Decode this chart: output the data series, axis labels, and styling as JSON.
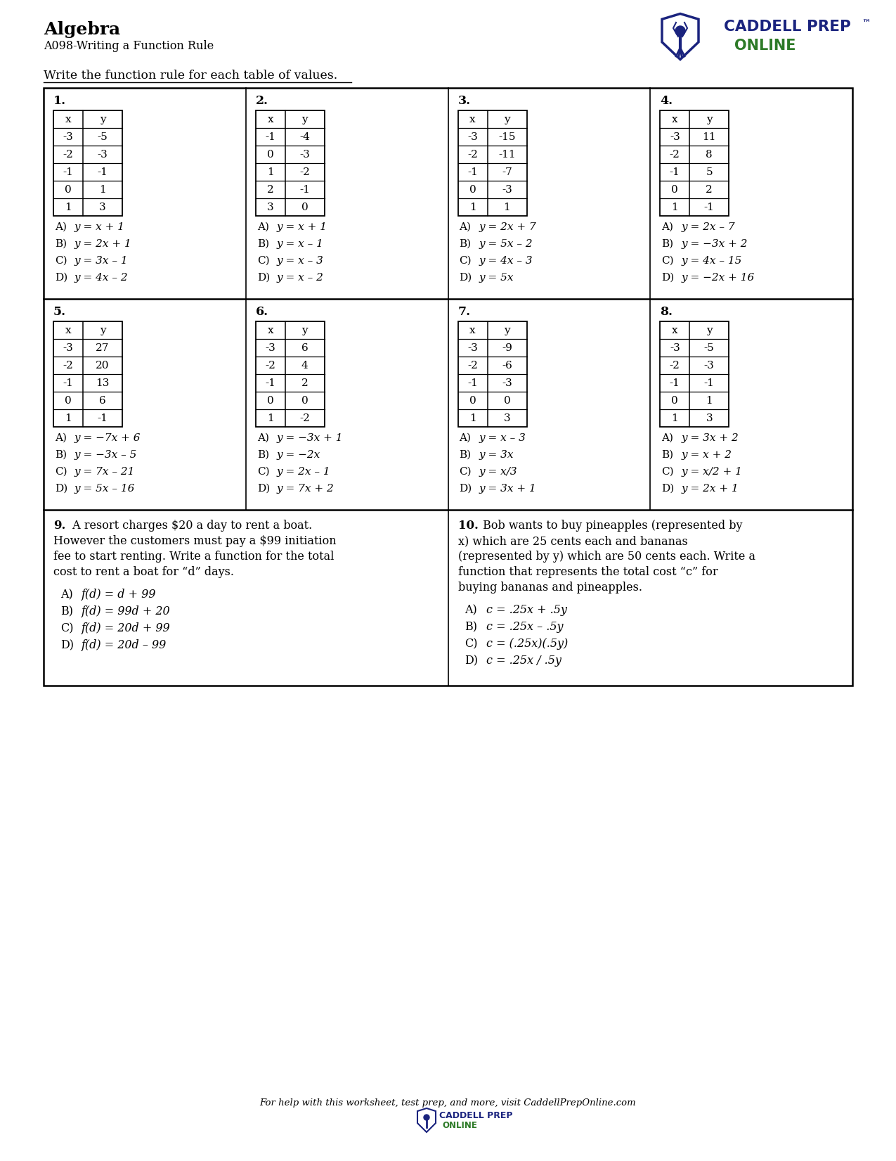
{
  "title": "Algebra",
  "subtitle": "A098-Writing a Function Rule",
  "instruction": "Write the function rule for each table of values.",
  "blue_color": "#1a237e",
  "green_color": "#2d7a27",
  "tables": [
    {
      "num": "1.",
      "data": [
        [
          "x",
          "y"
        ],
        [
          "-3",
          "-5"
        ],
        [
          "-2",
          "-3"
        ],
        [
          "-1",
          "-1"
        ],
        [
          "0",
          "1"
        ],
        [
          "1",
          "3"
        ]
      ],
      "choices": [
        [
          "A)",
          "y = x + 1"
        ],
        [
          "B)",
          "y = 2x + 1"
        ],
        [
          "C)",
          "y = 3x – 1"
        ],
        [
          "D)",
          "y = 4x – 2"
        ]
      ]
    },
    {
      "num": "2.",
      "data": [
        [
          "x",
          "y"
        ],
        [
          "-1",
          "-4"
        ],
        [
          "0",
          "-3"
        ],
        [
          "1",
          "-2"
        ],
        [
          "2",
          "-1"
        ],
        [
          "3",
          "0"
        ]
      ],
      "choices": [
        [
          "A)",
          "y = x + 1"
        ],
        [
          "B)",
          "y = x – 1"
        ],
        [
          "C)",
          "y = x – 3"
        ],
        [
          "D)",
          "y = x – 2"
        ]
      ]
    },
    {
      "num": "3.",
      "data": [
        [
          "x",
          "y"
        ],
        [
          "-3",
          "-15"
        ],
        [
          "-2",
          "-11"
        ],
        [
          "-1",
          "-7"
        ],
        [
          "0",
          "-3"
        ],
        [
          "1",
          "1"
        ]
      ],
      "choices": [
        [
          "A)",
          "y = 2x + 7"
        ],
        [
          "B)",
          "y = 5x – 2"
        ],
        [
          "C)",
          "y = 4x – 3"
        ],
        [
          "D)",
          "y = 5x"
        ]
      ]
    },
    {
      "num": "4.",
      "data": [
        [
          "x",
          "y"
        ],
        [
          "-3",
          "11"
        ],
        [
          "-2",
          "8"
        ],
        [
          "-1",
          "5"
        ],
        [
          "0",
          "2"
        ],
        [
          "1",
          "-1"
        ]
      ],
      "choices": [
        [
          "A)",
          "y = 2x – 7"
        ],
        [
          "B)",
          "y = −3x + 2"
        ],
        [
          "C)",
          "y = 4x – 15"
        ],
        [
          "D)",
          "y = −2x + 16"
        ]
      ]
    },
    {
      "num": "5.",
      "data": [
        [
          "x",
          "y"
        ],
        [
          "-3",
          "27"
        ],
        [
          "-2",
          "20"
        ],
        [
          "-1",
          "13"
        ],
        [
          "0",
          "6"
        ],
        [
          "1",
          "-1"
        ]
      ],
      "choices": [
        [
          "A)",
          "y = −7x + 6"
        ],
        [
          "B)",
          "y = −3x – 5"
        ],
        [
          "C)",
          "y = 7x – 21"
        ],
        [
          "D)",
          "y = 5x – 16"
        ]
      ]
    },
    {
      "num": "6.",
      "data": [
        [
          "x",
          "y"
        ],
        [
          "-3",
          "6"
        ],
        [
          "-2",
          "4"
        ],
        [
          "-1",
          "2"
        ],
        [
          "0",
          "0"
        ],
        [
          "1",
          "-2"
        ]
      ],
      "choices": [
        [
          "A)",
          "y = −3x + 1"
        ],
        [
          "B)",
          "y = −2x"
        ],
        [
          "C)",
          "y = 2x – 1"
        ],
        [
          "D)",
          "y = 7x + 2"
        ]
      ]
    },
    {
      "num": "7.",
      "data": [
        [
          "x",
          "y"
        ],
        [
          "-3",
          "-9"
        ],
        [
          "-2",
          "-6"
        ],
        [
          "-1",
          "-3"
        ],
        [
          "0",
          "0"
        ],
        [
          "1",
          "3"
        ]
      ],
      "choices": [
        [
          "A)",
          "y = x – 3"
        ],
        [
          "B)",
          "y = 3x"
        ],
        [
          "C)",
          "y = x/3"
        ],
        [
          "D)",
          "y = 3x + 1"
        ]
      ]
    },
    {
      "num": "8.",
      "data": [
        [
          "x",
          "y"
        ],
        [
          "-3",
          "-5"
        ],
        [
          "-2",
          "-3"
        ],
        [
          "-1",
          "-1"
        ],
        [
          "0",
          "1"
        ],
        [
          "1",
          "3"
        ]
      ],
      "choices": [
        [
          "A)",
          "y = 3x + 2"
        ],
        [
          "B)",
          "y = x + 2"
        ],
        [
          "C)",
          "y = x/2 + 1"
        ],
        [
          "D)",
          "y = 2x + 1"
        ]
      ]
    }
  ],
  "word_problems": [
    {
      "num": "9",
      "text_lines": [
        " A resort charges $20 a day to rent a boat.",
        "However the customers must pay a $99 initiation",
        "fee to start renting. Write a function for the total",
        "cost to rent a boat for “d” days."
      ],
      "choices": [
        [
          "A)",
          "f(d) = d + 99"
        ],
        [
          "B)",
          "f(d) = 99d + 20"
        ],
        [
          "C)",
          "f(d) = 20d + 99"
        ],
        [
          "D)",
          "f(d) = 20d – 99"
        ]
      ]
    },
    {
      "num": "10",
      "text_lines": [
        " Bob wants to buy pineapples (represented by",
        "x) which are 25 cents each and bananas",
        "(represented by y) which are 50 cents each. Write a",
        "function that represents the total cost “c” for",
        "buying bananas and pineapples."
      ],
      "choices": [
        [
          "A)",
          "c = .25x + .5y"
        ],
        [
          "B)",
          "c = .25x – .5y"
        ],
        [
          "C)",
          "c = (.25x)(.5y)"
        ],
        [
          "D)",
          "c = .25x / .5y"
        ]
      ]
    }
  ],
  "footer": "For help with this worksheet, test prep, and more, visit CaddellPrepOnline.com"
}
